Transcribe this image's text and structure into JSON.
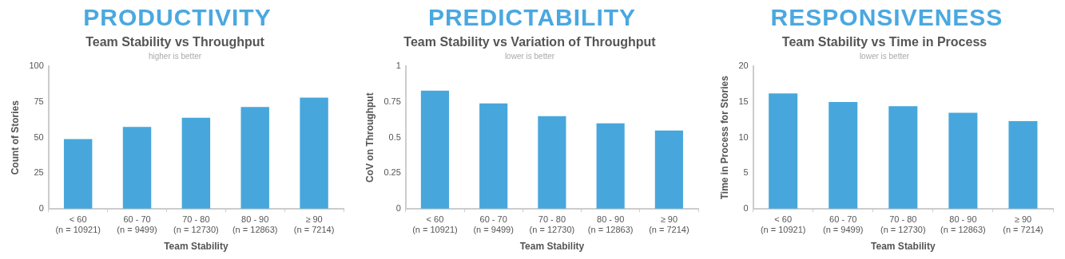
{
  "chart_data": [
    {
      "type": "bar",
      "title": "PRODUCTIVITY",
      "subtitle": "Team Stability vs Throughput",
      "annotations": [
        "higher is better"
      ],
      "xlabel": "Team Stability",
      "ylabel": "Count of Stories",
      "categories": [
        "< 60\n(n = 10921)",
        "60 - 70\n(n = 9499)",
        "70 - 80\n(n = 12730)",
        "80 - 90\n(n = 12863)",
        "≥ 90\n(n = 7214)"
      ],
      "values": [
        49,
        57.5,
        64,
        71.5,
        78
      ],
      "color": "#47a7dc",
      "ylim": [
        0,
        100
      ],
      "yticks": [
        0,
        25,
        50,
        75,
        100
      ],
      "grid": false,
      "legend": false
    },
    {
      "type": "bar",
      "title": "PREDICTABILITY",
      "subtitle": "Team Stability vs Variation of Throughput",
      "annotations": [
        "lower is better"
      ],
      "xlabel": "Team Stability",
      "ylabel": "CoV on Throughput",
      "categories": [
        "< 60\n(n = 10921)",
        "60 - 70\n(n = 9499)",
        "70 - 80\n(n = 12730)",
        "80 - 90\n(n = 12863)",
        "≥ 90\n(n = 7214)"
      ],
      "values": [
        0.83,
        0.74,
        0.65,
        0.6,
        0.55
      ],
      "color": "#47a7dc",
      "ylim": [
        0,
        1
      ],
      "yticks": [
        0,
        0.25,
        0.5,
        0.75,
        1
      ],
      "grid": false,
      "legend": false
    },
    {
      "type": "bar",
      "title": "RESPONSIVENESS",
      "subtitle": "Team Stability vs Time in Process",
      "annotations": [
        "lower is better"
      ],
      "xlabel": "Team Stability",
      "ylabel": "Time in Process for Stories",
      "categories": [
        "< 60\n(n = 10921)",
        "60 - 70\n(n = 9499)",
        "70 - 80\n(n = 12730)",
        "80 - 90\n(n = 12863)",
        "≥ 90\n(n = 7214)"
      ],
      "values": [
        16.2,
        15,
        14.4,
        13.5,
        12.3
      ],
      "color": "#47a7dc",
      "ylim": [
        0,
        20
      ],
      "yticks": [
        0,
        5,
        10,
        15,
        20
      ],
      "grid": false,
      "legend": false
    }
  ]
}
